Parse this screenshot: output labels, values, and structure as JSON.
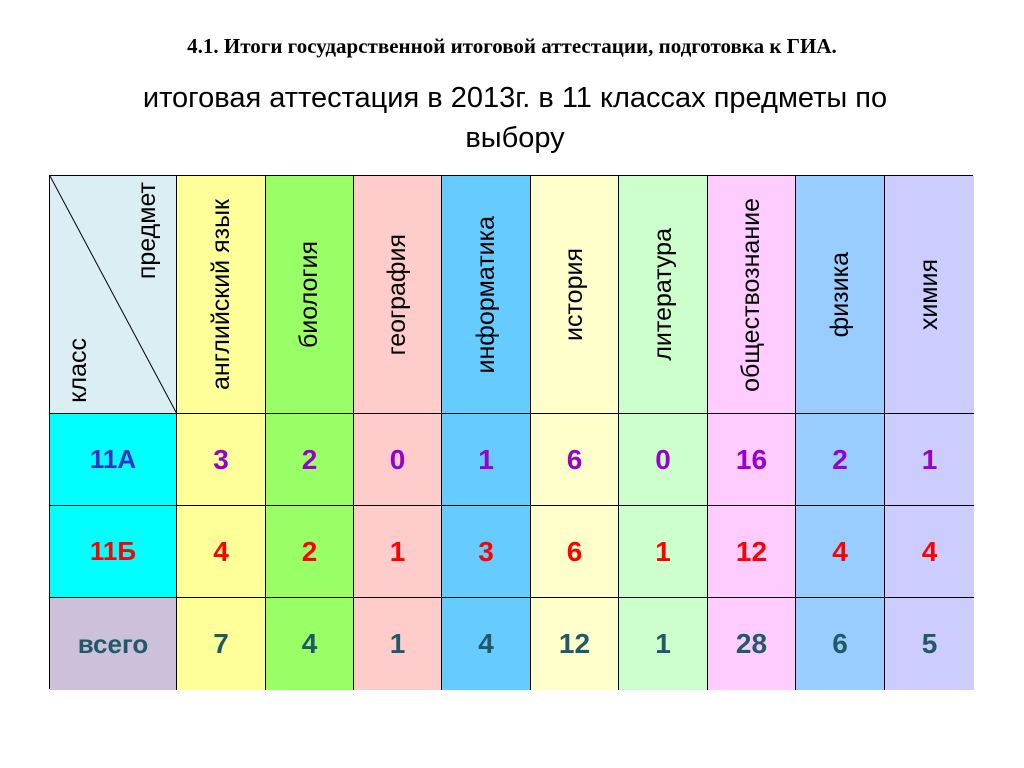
{
  "title": "4.1. Итоги государственной итоговой аттестации, подготовка к ГИА.",
  "subtitle": "итоговая аттестация в 2013г. в 11 классах   предметы по выбору",
  "table": {
    "corner_top": "предмет",
    "corner_bottom": "класс",
    "subjects": [
      {
        "name": "английский язык",
        "color": "#ffff99"
      },
      {
        "name": "биология",
        "color": "#99ff66"
      },
      {
        "name": "география",
        "color": "#ffcccc"
      },
      {
        "name": "информатика",
        "color": "#66ccff"
      },
      {
        "name": "история",
        "color": "#ffffcc"
      },
      {
        "name": "литература",
        "color": "#ccffcc"
      },
      {
        "name": "обществознание",
        "color": "#ffccff"
      },
      {
        "name": "физика",
        "color": "#99ccff"
      },
      {
        "name": "химия",
        "color": "#ccccff"
      }
    ],
    "rows": [
      {
        "label": "11А",
        "label_bg": "#00ffff",
        "label_color": "#3333cc",
        "value_color": "#9900cc",
        "values": [
          "3",
          "2",
          "0",
          "1",
          "6",
          "0",
          "16",
          "2",
          "1"
        ]
      },
      {
        "label": "11Б",
        "label_bg": "#00ffff",
        "label_color": "#ff0000",
        "value_color": "#ff0000",
        "values": [
          "4",
          "2",
          "1",
          "3",
          "6",
          "1",
          "12",
          "4",
          "4"
        ]
      },
      {
        "label": "всего",
        "label_bg": "#ccc0da",
        "label_color": "#215968",
        "value_color": "#215968",
        "values": [
          "7",
          "4",
          "1",
          "4",
          "12",
          "1",
          "28",
          "6",
          "5"
        ]
      }
    ]
  }
}
